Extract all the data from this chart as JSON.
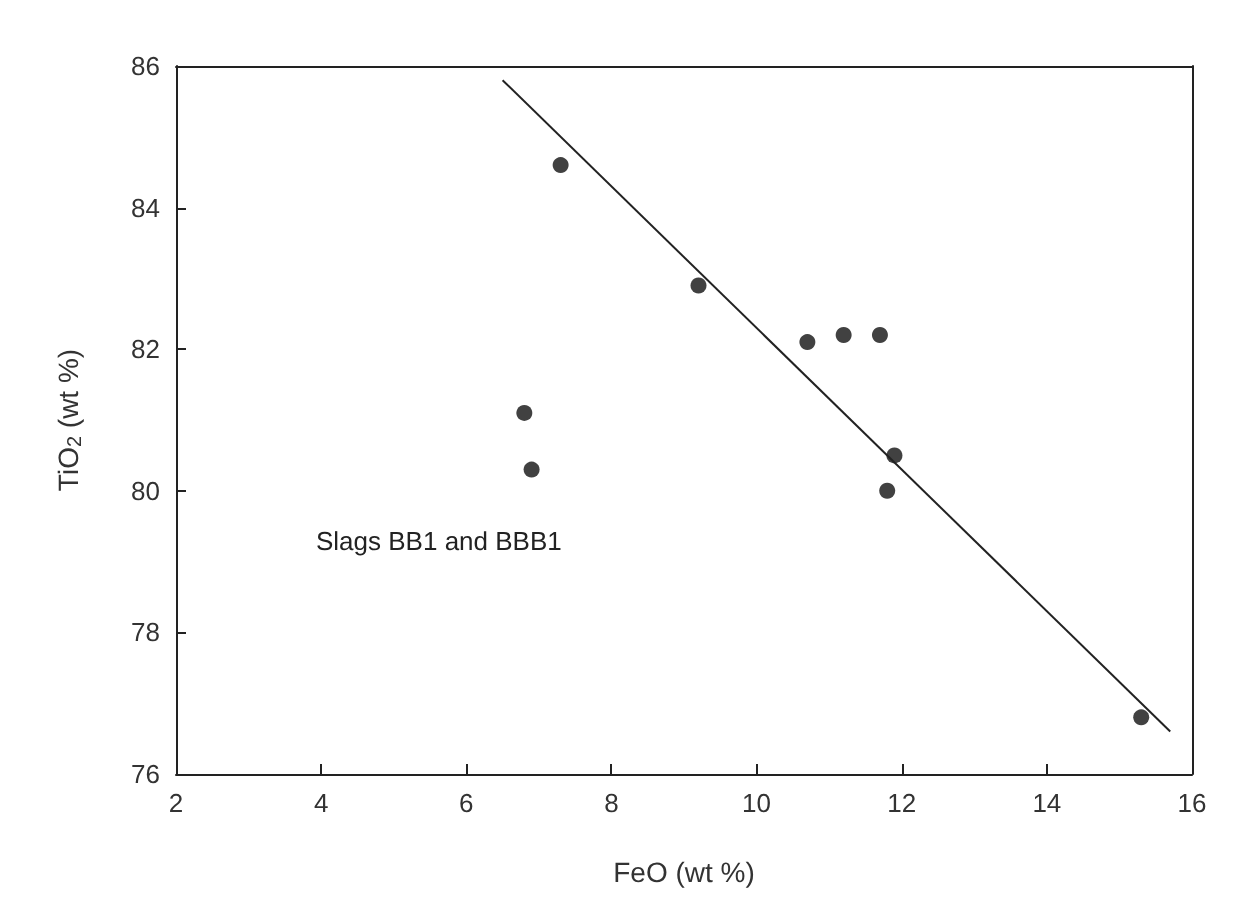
{
  "chart_data": {
    "type": "scatter",
    "xlabel": "FeO (wt %)",
    "ylabel": "TiO$_{2}$ (wt %)",
    "xlim": [
      2,
      16
    ],
    "xticks": [
      2,
      4,
      6,
      8,
      10,
      12,
      14,
      16
    ],
    "ylim": [
      76,
      86
    ],
    "yticks": [
      76,
      78,
      80,
      82,
      84,
      86
    ],
    "grid": false,
    "marker": "circle",
    "series": [
      {
        "color": "#111111",
        "x": [
          7.3,
          9.2,
          10.7,
          11.2,
          11.7,
          6.8,
          6.9,
          11.9,
          11.8,
          15.3
        ],
        "values": [
          84.6,
          82.9,
          82.1,
          82.2,
          82.2,
          81.1,
          80.3,
          80.5,
          80.0,
          76.8
        ]
      },
      {
        "type": "line",
        "color": "#222222",
        "marker": "none",
        "x": [
          6.5,
          15.7
        ],
        "values": [
          85.8,
          76.6
        ]
      }
    ],
    "annotations": [
      "Slags BB1 and BBB1"
    ]
  }
}
